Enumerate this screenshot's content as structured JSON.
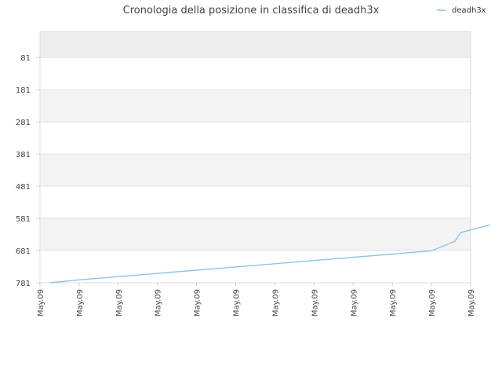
{
  "chart_data": {
    "type": "line",
    "title": "Cronologia della posizione in classifica di deadh3x",
    "xlabel": "",
    "ylabel": "",
    "y_inverted": true,
    "ylim": [
      781,
      0
    ],
    "y_ticks": [
      "81",
      "181",
      "281",
      "381",
      "481",
      "581",
      "681",
      "781"
    ],
    "x_ticks": [
      "May.09",
      "May.09",
      "May.09",
      "May.09",
      "May.09",
      "May.09",
      "May.09",
      "May.09",
      "May.09",
      "May.09",
      "May.09",
      "May.09"
    ],
    "grid": "horizontal",
    "band_colors": [
      "#eeeeee",
      "#ffffff",
      "#f3f3f3"
    ],
    "legend_position": "top-right",
    "series": [
      {
        "name": "deadh3x",
        "color": "#8ec3ea",
        "x": [
          0.25,
          1,
          2,
          3,
          4,
          5,
          6,
          7,
          8,
          9,
          10,
          10.6,
          10.75,
          11.5
        ],
        "y": [
          781,
          772,
          762,
          752,
          742,
          732,
          722,
          712,
          702,
          692,
          682,
          652,
          625,
          601
        ]
      }
    ]
  }
}
